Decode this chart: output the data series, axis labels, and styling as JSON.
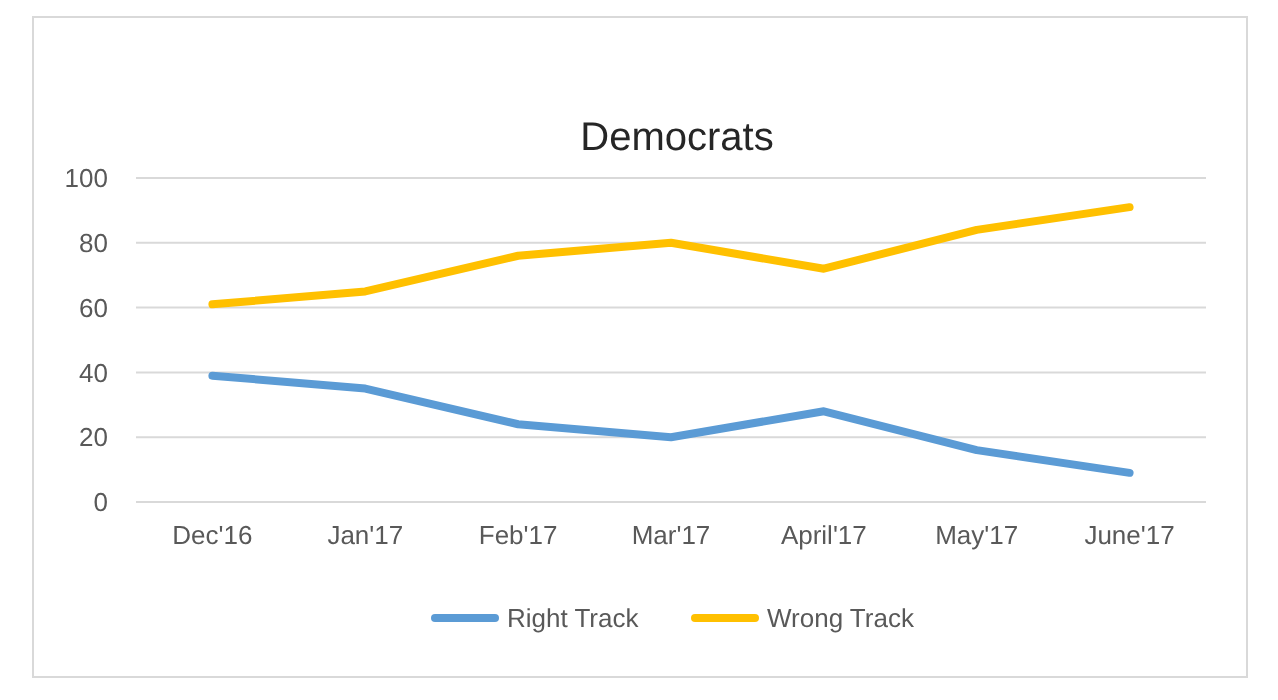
{
  "chart_data": {
    "type": "line",
    "title": "Democrats",
    "categories": [
      "Dec'16",
      "Jan'17",
      "Feb'17",
      "Mar'17",
      "April'17",
      "May'17",
      "June'17"
    ],
    "series": [
      {
        "name": "Right Track",
        "color": "#5b9bd5",
        "values": [
          39,
          35,
          24,
          20,
          28,
          16,
          9
        ]
      },
      {
        "name": "Wrong Track",
        "color": "#ffc000",
        "values": [
          61,
          65,
          76,
          80,
          72,
          84,
          91
        ]
      }
    ],
    "ylim": [
      0,
      100
    ],
    "yticks": [
      0,
      20,
      40,
      60,
      80,
      100
    ],
    "grid": "y",
    "legend": "bottom",
    "marker": "none",
    "line_style": "solid"
  }
}
